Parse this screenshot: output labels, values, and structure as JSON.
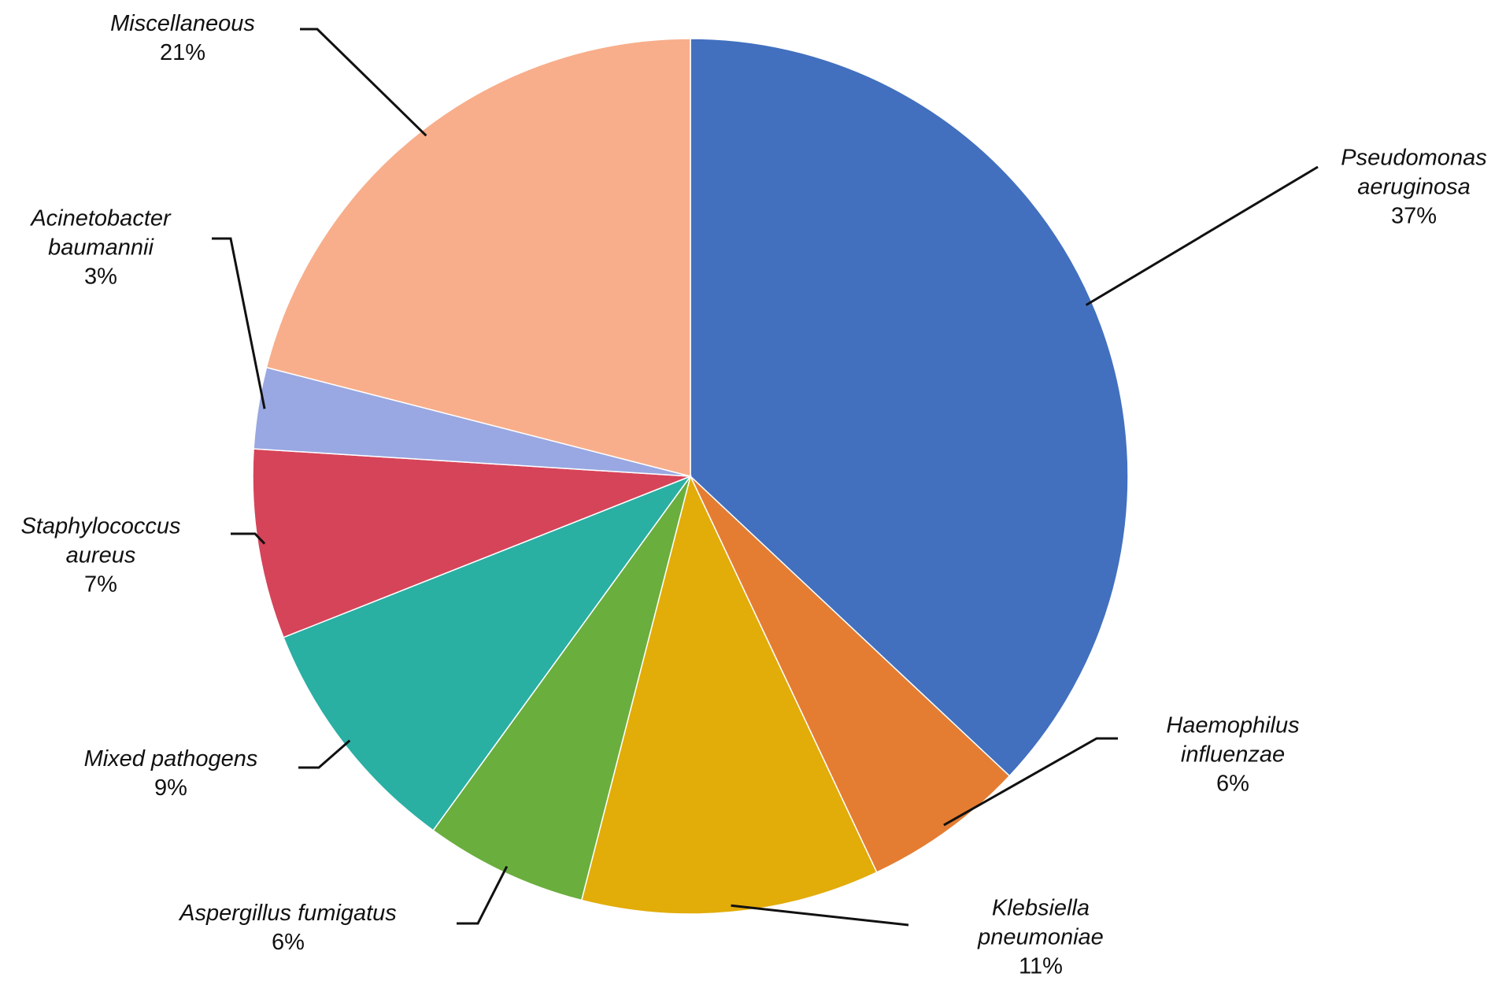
{
  "chart_data": {
    "type": "pie",
    "categories": [
      "Pseudomonas aeruginosa",
      "Haemophilus influenzae",
      "Klebsiella pneumoniae",
      "Aspergillus fumigatus",
      "Mixed pathogens",
      "Staphylococcus aureus",
      "Acinetobacter baumannii",
      "Miscellaneous"
    ],
    "values": [
      37,
      6,
      11,
      6,
      9,
      7,
      3,
      21
    ],
    "value_labels": [
      "37%",
      "6%",
      "11%",
      "6%",
      "9%",
      "7%",
      "3%",
      "21%"
    ],
    "colors": [
      "#4270bf",
      "#e47d32",
      "#e2ac09",
      "#6aae3e",
      "#2aafa3",
      "#d64459",
      "#99a8e2",
      "#f8ae8b"
    ]
  }
}
